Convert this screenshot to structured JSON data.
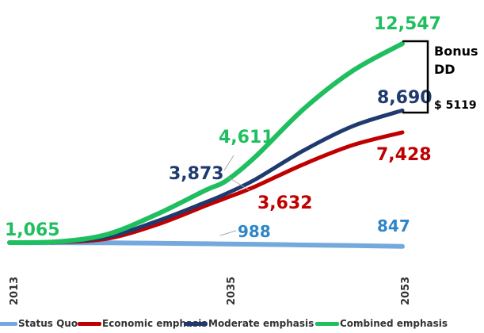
{
  "chart_data": {
    "type": "line",
    "x": [
      2013,
      2018,
      2023,
      2028,
      2033,
      2035,
      2038,
      2043,
      2048,
      2053
    ],
    "x_ticks": [
      "2013",
      "2035",
      "2053"
    ],
    "series": [
      {
        "name": "Status Quo",
        "color": "#74a9de",
        "values": [
          1065,
          1060,
          1050,
          1030,
          1000,
          988,
          970,
          930,
          890,
          847
        ]
      },
      {
        "name": "Economic emphasis",
        "color": "#c00000",
        "values": [
          1065,
          1090,
          1300,
          2100,
          3200,
          3632,
          4300,
          5600,
          6700,
          7428
        ]
      },
      {
        "name": "Moderate emphasis",
        "color": "#1f3a6e",
        "values": [
          1065,
          1100,
          1400,
          2300,
          3400,
          3873,
          4700,
          6400,
          7800,
          8690
        ]
      },
      {
        "name": "Combined emphasis",
        "color": "#1fbf5f",
        "values": [
          1065,
          1120,
          1550,
          2700,
          4100,
          4611,
          6000,
          8800,
          11000,
          12547
        ]
      }
    ],
    "data_labels": [
      {
        "text": "1,065",
        "color": "#1fbf5f"
      },
      {
        "text": "988",
        "color": "#2e86c8"
      },
      {
        "text": "847",
        "color": "#2e86c8"
      },
      {
        "text": "3,873",
        "color": "#1f3a6e"
      },
      {
        "text": "4,611",
        "color": "#1fbf5f"
      },
      {
        "text": "3,632",
        "color": "#c00000"
      },
      {
        "text": "12,547",
        "color": "#1fbf5f"
      },
      {
        "text": "8,690",
        "color": "#1f3a6e"
      },
      {
        "text": "7,428",
        "color": "#c00000"
      }
    ],
    "annotation": {
      "lines": [
        "Bonus",
        "DD",
        "$ 5119"
      ]
    },
    "legend_position": "bottom",
    "grid": false
  }
}
